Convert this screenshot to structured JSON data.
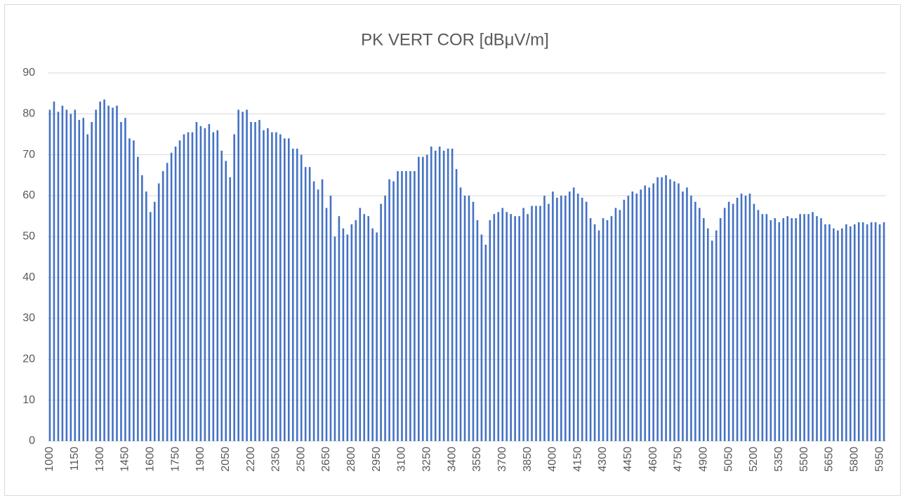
{
  "chart_data": {
    "type": "bar",
    "title": "PK VERT COR [dBμV/m]",
    "color": "#4472c4",
    "grid": true,
    "ylim": [
      0,
      90
    ],
    "yticks": [
      0,
      10,
      20,
      30,
      40,
      50,
      60,
      70,
      80,
      90
    ],
    "categories": [
      "1000",
      null,
      null,
      null,
      null,
      null,
      "1150",
      null,
      null,
      null,
      null,
      null,
      "1300",
      null,
      null,
      null,
      null,
      null,
      "1450",
      null,
      null,
      null,
      null,
      null,
      "1600",
      null,
      null,
      null,
      null,
      null,
      "1750",
      null,
      null,
      null,
      null,
      null,
      "1900",
      null,
      null,
      null,
      null,
      null,
      "2050",
      null,
      null,
      null,
      null,
      null,
      "2200",
      null,
      null,
      null,
      null,
      null,
      "2350",
      null,
      null,
      null,
      null,
      null,
      "2500",
      null,
      null,
      null,
      null,
      null,
      "2650",
      null,
      null,
      null,
      null,
      null,
      "2800",
      null,
      null,
      null,
      null,
      null,
      "2950",
      null,
      null,
      null,
      null,
      null,
      "3100",
      null,
      null,
      null,
      null,
      null,
      "3250",
      null,
      null,
      null,
      null,
      null,
      "3400",
      null,
      null,
      null,
      null,
      null,
      "3550",
      null,
      null,
      null,
      null,
      null,
      "3700",
      null,
      null,
      null,
      null,
      null,
      "3850",
      null,
      null,
      null,
      null,
      null,
      "4000",
      null,
      null,
      null,
      null,
      null,
      "4150",
      null,
      null,
      null,
      null,
      null,
      "4300",
      null,
      null,
      null,
      null,
      null,
      "4450",
      null,
      null,
      null,
      null,
      null,
      "4600",
      null,
      null,
      null,
      null,
      null,
      "4750",
      null,
      null,
      null,
      null,
      null,
      "4900",
      null,
      null,
      null,
      null,
      null,
      "5050",
      null,
      null,
      null,
      null,
      null,
      "5200",
      null,
      null,
      null,
      null,
      null,
      "5350",
      null,
      null,
      null,
      null,
      null,
      "5500",
      null,
      null,
      null,
      null,
      null,
      "5650",
      null,
      null,
      null,
      null,
      null,
      "5800",
      null,
      null,
      null,
      null,
      null,
      "5950",
      null
    ],
    "values": [
      81,
      83,
      80.5,
      82,
      81,
      80,
      81,
      78.5,
      79,
      75,
      78,
      81,
      83,
      83.5,
      82,
      81.5,
      82,
      78,
      79,
      74,
      73.5,
      69.5,
      65,
      61,
      56,
      58.5,
      63,
      66,
      68,
      70.5,
      72,
      73.5,
      75,
      75.5,
      75.5,
      78,
      77,
      76.5,
      77.5,
      75.5,
      76,
      71,
      68.5,
      64.5,
      75,
      81,
      80.5,
      81,
      78,
      78,
      78.5,
      76,
      76.5,
      75.5,
      75.5,
      75,
      74,
      74,
      71.5,
      71.5,
      70,
      67,
      67,
      63.5,
      61.5,
      64,
      57,
      60,
      50,
      55,
      52,
      50.5,
      53,
      54,
      57,
      55.5,
      55,
      52,
      51,
      58,
      60,
      64,
      63.5,
      66,
      66,
      66,
      66,
      66,
      69.5,
      69.5,
      70,
      72,
      71,
      72,
      71,
      71.5,
      71.5,
      66.5,
      62,
      60,
      60,
      58.5,
      54,
      50.5,
      48,
      54,
      55.5,
      56,
      57,
      56,
      55.5,
      55,
      55,
      57,
      55.5,
      57.5,
      57.5,
      57.5,
      60,
      58,
      61,
      59.5,
      60,
      60,
      61,
      62,
      60.5,
      59.5,
      58.5,
      54.5,
      53,
      51.5,
      54.5,
      54,
      55,
      57,
      56.5,
      59,
      60,
      61,
      60.5,
      61.5,
      62.5,
      62,
      63,
      64.5,
      64.5,
      65,
      64,
      63.5,
      63,
      61,
      62,
      60,
      58.5,
      57,
      54.5,
      52,
      49,
      51.5,
      54.5,
      57,
      58.5,
      58,
      59.5,
      60.5,
      60,
      60.5,
      58,
      56.5,
      55.5,
      55.5,
      54,
      54.5,
      53.5,
      54.5,
      55,
      54.5,
      54.5,
      55.5,
      55.5,
      55.5,
      56,
      55,
      54.5,
      53,
      53,
      52,
      51.5,
      52,
      53,
      52.5,
      53,
      53.5,
      53.5,
      53,
      53.5,
      53.5,
      53,
      53.5
    ]
  }
}
